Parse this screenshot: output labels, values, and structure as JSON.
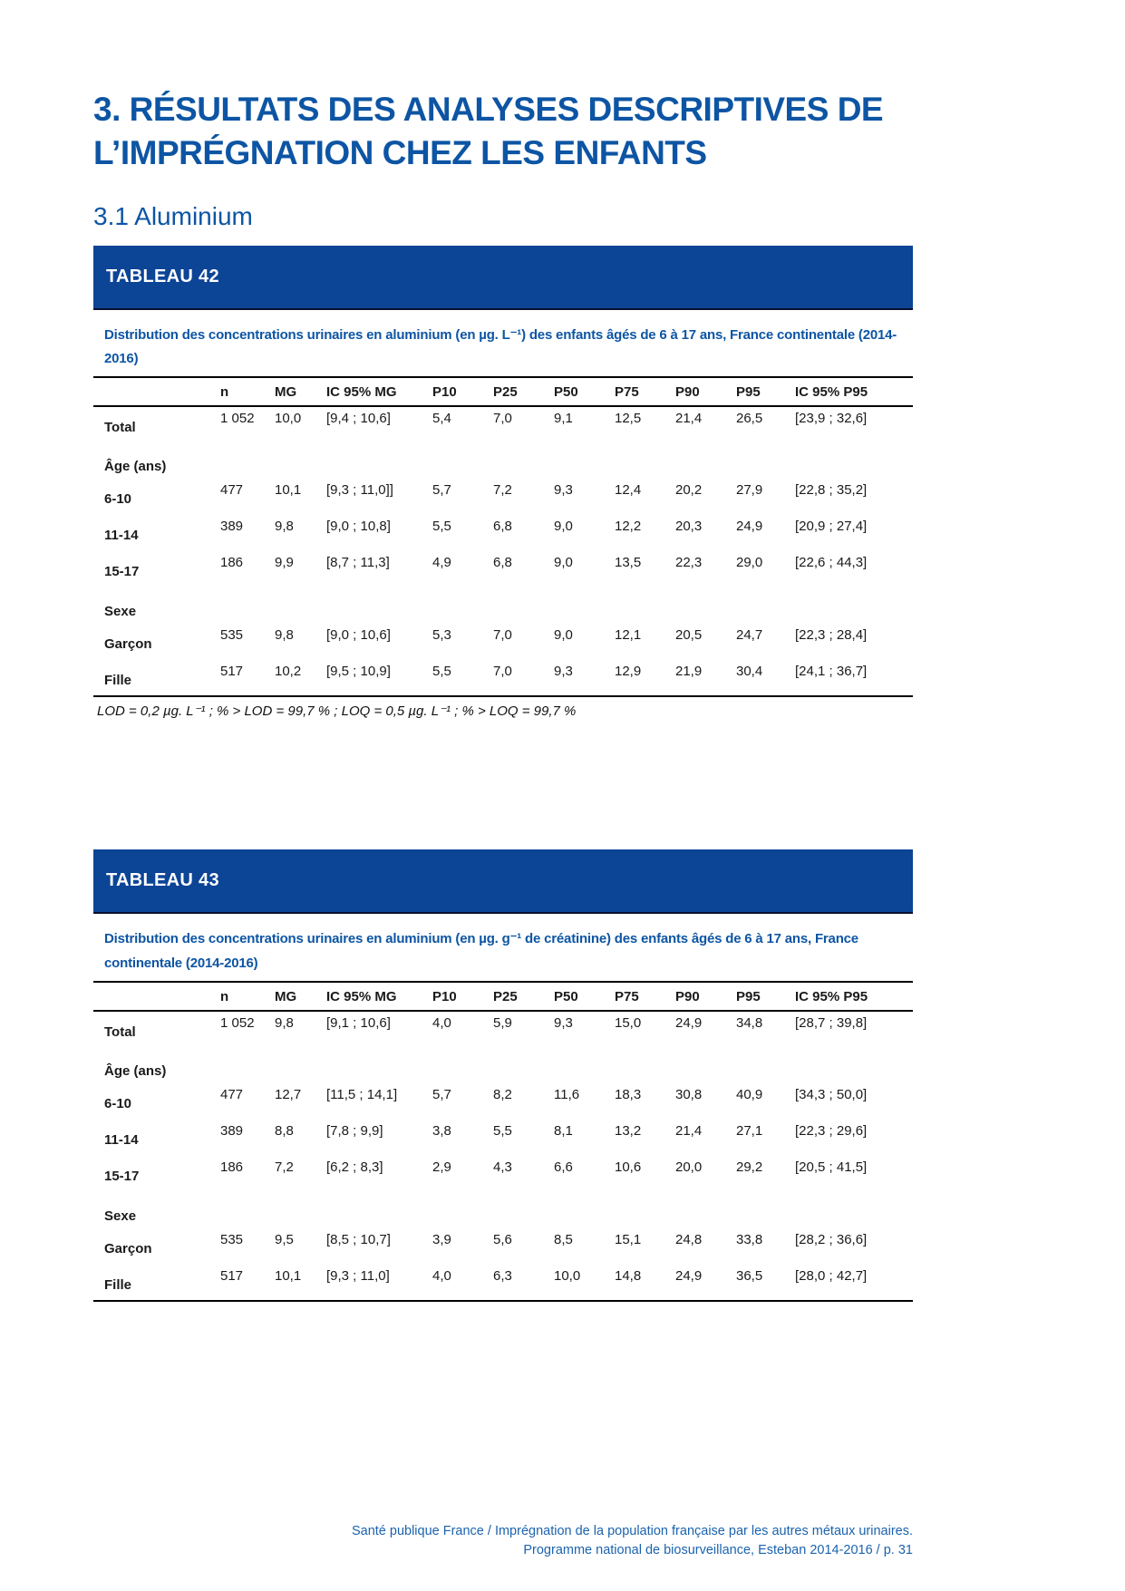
{
  "page_heading": {
    "h1": "3. RÉSULTATS DES ANALYSES DESCRIPTIVES DE L’IMPRÉGNATION CHEZ LES ENFANTS",
    "h2": "3.1 Aluminium"
  },
  "colors": {
    "heading_blue": "#0d55a4",
    "banner_blue": "#0c4496",
    "footer_blue": "#1b63ae",
    "table_text": "#1a1a1a"
  },
  "tables": [
    {
      "banner": "TABLEAU 42",
      "title": "Distribution des concentrations urinaires en aluminium (en µg. L⁻¹) des enfants âgés de 6 à 17 ans, France continentale (2014-2016)",
      "columns": [
        "",
        "n",
        "MG",
        "IC 95% MG",
        "P10",
        "P25",
        "P50",
        "P75",
        "P90",
        "P95",
        "IC 95% P95"
      ],
      "rows": [
        {
          "type": "data",
          "cells": [
            "Total",
            "1 052",
            "10,0",
            "[9,4 ; 10,6]",
            "5,4",
            "7,0",
            "9,1",
            "12,5",
            "21,4",
            "26,5",
            "[23,9 ; 32,6]"
          ]
        },
        {
          "type": "section",
          "cells": [
            "Âge (ans)"
          ]
        },
        {
          "type": "data",
          "cells": [
            "6-10",
            "477",
            "10,1",
            "[9,3 ; 11,0]]",
            "5,7",
            "7,2",
            "9,3",
            "12,4",
            "20,2",
            "27,9",
            "[22,8 ; 35,2]"
          ]
        },
        {
          "type": "data",
          "cells": [
            "11-14",
            "389",
            "9,8",
            "[9,0 ; 10,8]",
            "5,5",
            "6,8",
            "9,0",
            "12,2",
            "20,3",
            "24,9",
            "[20,9 ; 27,4]"
          ]
        },
        {
          "type": "data",
          "cells": [
            "15-17",
            "186",
            "9,9",
            "[8,7 ; 11,3]",
            "4,9",
            "6,8",
            "9,0",
            "13,5",
            "22,3",
            "29,0",
            "[22,6 ; 44,3]"
          ]
        },
        {
          "type": "section",
          "cells": [
            "Sexe"
          ]
        },
        {
          "type": "data",
          "cells": [
            "Garçon",
            "535",
            "9,8",
            "[9,0 ; 10,6]",
            "5,3",
            "7,0",
            "9,0",
            "12,1",
            "20,5",
            "24,7",
            "[22,3 ; 28,4]"
          ]
        },
        {
          "type": "data",
          "cells": [
            "Fille",
            "517",
            "10,2",
            "[9,5 ; 10,9]",
            "5,5",
            "7,0",
            "9,3",
            "12,9",
            "21,9",
            "30,4",
            "[24,1 ; 36,7]"
          ]
        }
      ],
      "footnote": "LOD = 0,2 µg. L⁻¹ ; % > LOD = 99,7 % ; LOQ = 0,5 µg. L⁻¹ ; % > LOQ = 99,7 %"
    },
    {
      "banner": "TABLEAU 43",
      "title": "Distribution des concentrations urinaires en aluminium (en µg. g⁻¹ de créatinine) des enfants âgés de 6 à 17 ans, France continentale (2014-2016)",
      "columns": [
        "",
        "n",
        "MG",
        "IC 95% MG",
        "P10",
        "P25",
        "P50",
        "P75",
        "P90",
        "P95",
        "IC 95% P95"
      ],
      "rows": [
        {
          "type": "data",
          "cells": [
            "Total",
            "1 052",
            "9,8",
            "[9,1 ; 10,6]",
            "4,0",
            "5,9",
            "9,3",
            "15,0",
            "24,9",
            "34,8",
            "[28,7 ; 39,8]"
          ]
        },
        {
          "type": "section",
          "cells": [
            "Âge (ans)"
          ]
        },
        {
          "type": "data",
          "cells": [
            "6-10",
            "477",
            "12,7",
            "[11,5 ; 14,1]",
            "5,7",
            "8,2",
            "11,6",
            "18,3",
            "30,8",
            "40,9",
            "[34,3 ; 50,0]"
          ]
        },
        {
          "type": "data",
          "cells": [
            "11-14",
            "389",
            "8,8",
            "[7,8 ; 9,9]",
            "3,8",
            "5,5",
            "8,1",
            "13,2",
            "21,4",
            "27,1",
            "[22,3 ; 29,6]"
          ]
        },
        {
          "type": "data",
          "cells": [
            "15-17",
            "186",
            "7,2",
            "[6,2 ; 8,3]",
            "2,9",
            "4,3",
            "6,6",
            "10,6",
            "20,0",
            "29,2",
            "[20,5 ; 41,5]"
          ]
        },
        {
          "type": "section",
          "cells": [
            "Sexe"
          ]
        },
        {
          "type": "data",
          "cells": [
            "Garçon",
            "535",
            "9,5",
            "[8,5 ; 10,7]",
            "3,9",
            "5,6",
            "8,5",
            "15,1",
            "24,8",
            "33,8",
            "[28,2 ; 36,6]"
          ]
        },
        {
          "type": "data",
          "cells": [
            "Fille",
            "517",
            "10,1",
            "[9,3 ; 11,0]",
            "4,0",
            "6,3",
            "10,0",
            "14,8",
            "24,9",
            "36,5",
            "[28,0 ; 42,7]"
          ]
        }
      ],
      "footnote": ""
    }
  ],
  "footer": {
    "line1": "Santé publique France / Imprégnation de la population française par les autres métaux urinaires.",
    "line2": "Programme national de biosurveillance, Esteban 2014-2016 / p. 31"
  }
}
